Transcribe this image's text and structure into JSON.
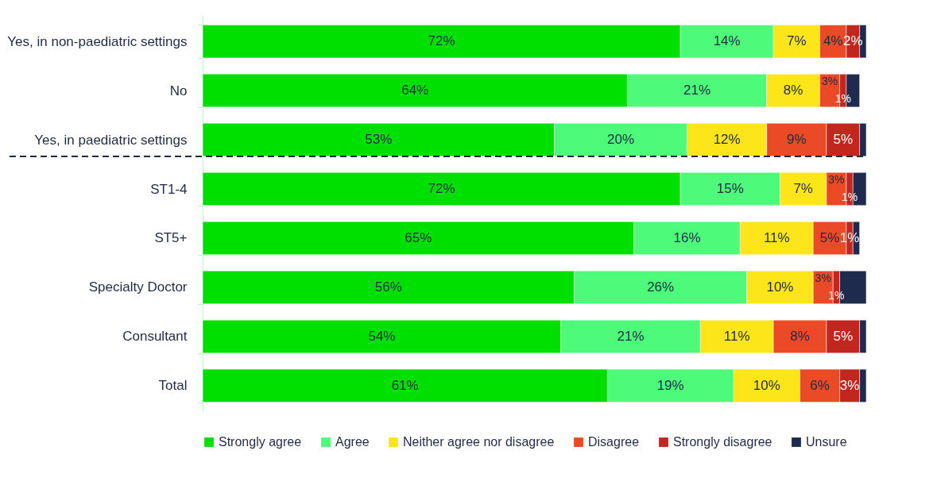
{
  "chart_data": {
    "type": "bar",
    "orientation": "horizontal",
    "stacked": true,
    "legend": "bottom",
    "grid": false,
    "categories": [
      "Yes, in non-paediatric settings",
      "No",
      "Yes, in paediatric settings",
      "ST1-4",
      "ST5+",
      "Specialty Doctor",
      "Consultant",
      "Total"
    ],
    "series": [
      {
        "name": "Strongly agree",
        "color": "#00e000",
        "values": [
          72,
          64,
          53,
          72,
          65,
          56,
          54,
          61
        ],
        "value_labels": [
          "72%",
          "64%",
          "53%",
          "72%",
          "65%",
          "56%",
          "54%",
          "61%"
        ]
      },
      {
        "name": "Agree",
        "color": "#4dfa7a",
        "values": [
          14,
          21,
          20,
          15,
          16,
          26,
          21,
          19
        ],
        "value_labels": [
          "14%",
          "21%",
          "20%",
          "15%",
          "16%",
          "26%",
          "21%",
          "19%"
        ]
      },
      {
        "name": "Neither agree nor disagree",
        "color": "#fce61a",
        "values": [
          7,
          8,
          12,
          7,
          11,
          10,
          11,
          10
        ],
        "value_labels": [
          "7%",
          "8%",
          "12%",
          "7%",
          "11%",
          "10%",
          "11%",
          "10%"
        ]
      },
      {
        "name": "Disagree",
        "color": "#ea4a26",
        "values": [
          4,
          3,
          9,
          3,
          5,
          3,
          8,
          6
        ],
        "value_labels": [
          "4%",
          "3%",
          "9%",
          "3%",
          "5%",
          "3%",
          "8%",
          "6%"
        ]
      },
      {
        "name": "Strongly disagree",
        "color": "#c1271f",
        "values": [
          2,
          1,
          5,
          1,
          1,
          1,
          5,
          3
        ],
        "value_labels": [
          "2%",
          "1%",
          "5%",
          "1%",
          "1%",
          "1%",
          "5%",
          "3%"
        ]
      },
      {
        "name": "Unsure",
        "color": "#1f2a4f",
        "values": [
          1,
          2,
          1,
          2,
          1,
          4,
          1,
          1
        ],
        "value_labels": [
          null,
          null,
          null,
          null,
          null,
          null,
          null,
          null
        ]
      }
    ]
  }
}
